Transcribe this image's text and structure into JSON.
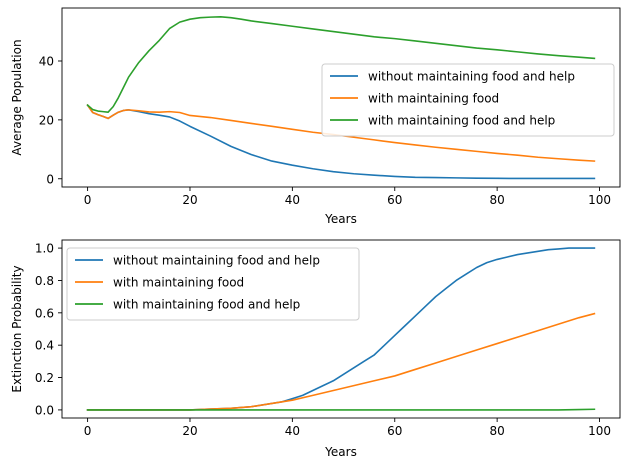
{
  "chart_data": [
    {
      "type": "line",
      "xlabel": "Years",
      "ylabel": "Average Population",
      "xlim": [
        -5,
        104
      ],
      "ylim": [
        -2.8,
        58
      ],
      "xticks": [
        0,
        20,
        40,
        60,
        80,
        100
      ],
      "yticks": [
        0,
        20,
        40
      ],
      "legend_position": "center-right",
      "series": [
        {
          "name": "without maintaining food and help",
          "color": "#1f77b4",
          "x": [
            0,
            1,
            2,
            3,
            4,
            5,
            6,
            7,
            8,
            10,
            12,
            14,
            16,
            18,
            20,
            24,
            28,
            32,
            36,
            40,
            44,
            48,
            52,
            56,
            60,
            64,
            68,
            72,
            76,
            80,
            84,
            88,
            92,
            96,
            99
          ],
          "y": [
            25,
            22.5,
            21.8,
            21.2,
            20.5,
            21.6,
            22.6,
            23.2,
            23.4,
            22.8,
            22.1,
            21.6,
            21.0,
            19.6,
            17.8,
            14.5,
            11.0,
            8.2,
            6.0,
            4.6,
            3.4,
            2.4,
            1.7,
            1.2,
            0.8,
            0.5,
            0.4,
            0.3,
            0.2,
            0.15,
            0.1,
            0.1,
            0.1,
            0.1,
            0.1
          ]
        },
        {
          "name": "with maintaining food",
          "color": "#ff7f0e",
          "x": [
            0,
            1,
            2,
            3,
            4,
            5,
            6,
            7,
            8,
            10,
            12,
            14,
            16,
            18,
            20,
            24,
            28,
            32,
            36,
            40,
            44,
            48,
            52,
            56,
            60,
            64,
            68,
            72,
            76,
            80,
            84,
            88,
            92,
            96,
            99
          ],
          "y": [
            25,
            22.5,
            21.8,
            21.2,
            20.5,
            21.6,
            22.6,
            23.2,
            23.4,
            23.1,
            22.7,
            22.6,
            22.8,
            22.5,
            21.5,
            20.8,
            19.8,
            18.8,
            17.8,
            16.8,
            15.8,
            15.0,
            14.1,
            13.2,
            12.3,
            11.5,
            10.7,
            10.0,
            9.3,
            8.6,
            8.0,
            7.3,
            6.8,
            6.3,
            6.0
          ]
        },
        {
          "name": "with maintaining food and help",
          "color": "#2ca02c",
          "x": [
            0,
            1,
            2,
            3,
            4,
            5,
            6,
            7,
            8,
            10,
            12,
            14,
            16,
            18,
            20,
            22,
            24,
            26,
            28,
            30,
            32,
            36,
            40,
            44,
            48,
            52,
            56,
            60,
            64,
            68,
            72,
            76,
            80,
            84,
            88,
            92,
            96,
            99
          ],
          "y": [
            25,
            23.5,
            23.0,
            22.8,
            22.6,
            24.5,
            27.5,
            31.0,
            34.5,
            39.5,
            43.5,
            47.0,
            51.0,
            53.2,
            54.2,
            54.7,
            54.9,
            55.0,
            54.7,
            54.2,
            53.6,
            52.7,
            51.8,
            50.9,
            50.0,
            49.1,
            48.2,
            47.6,
            46.8,
            46.0,
            45.2,
            44.4,
            43.8,
            43.1,
            42.4,
            41.8,
            41.3,
            40.9
          ]
        }
      ]
    },
    {
      "type": "line",
      "xlabel": "Years",
      "ylabel": "Extinction Probability",
      "xlim": [
        -5,
        104
      ],
      "ylim": [
        -0.05,
        1.05
      ],
      "xticks": [
        0,
        20,
        40,
        60,
        80,
        100
      ],
      "yticks": [
        0.0,
        0.2,
        0.4,
        0.6,
        0.8,
        1.0
      ],
      "legend_position": "top-left",
      "series": [
        {
          "name": "without maintaining food and help",
          "color": "#1f77b4",
          "x": [
            0,
            10,
            20,
            24,
            28,
            32,
            34,
            36,
            38,
            40,
            42,
            44,
            46,
            48,
            50,
            52,
            54,
            56,
            58,
            60,
            62,
            64,
            66,
            68,
            70,
            72,
            74,
            76,
            78,
            80,
            82,
            84,
            86,
            88,
            90,
            92,
            94,
            96,
            99
          ],
          "y": [
            0,
            0,
            0.0,
            0.005,
            0.01,
            0.02,
            0.03,
            0.04,
            0.05,
            0.07,
            0.09,
            0.12,
            0.15,
            0.18,
            0.22,
            0.26,
            0.3,
            0.34,
            0.4,
            0.46,
            0.52,
            0.58,
            0.64,
            0.7,
            0.75,
            0.8,
            0.84,
            0.88,
            0.91,
            0.93,
            0.945,
            0.96,
            0.97,
            0.98,
            0.99,
            0.995,
            1.0,
            1.0,
            1.0
          ]
        },
        {
          "name": "with maintaining food",
          "color": "#ff7f0e",
          "x": [
            0,
            10,
            20,
            24,
            28,
            32,
            36,
            40,
            44,
            48,
            52,
            56,
            60,
            64,
            68,
            72,
            76,
            80,
            84,
            88,
            92,
            96,
            99
          ],
          "y": [
            0,
            0,
            0.0,
            0.005,
            0.01,
            0.02,
            0.04,
            0.06,
            0.09,
            0.12,
            0.15,
            0.18,
            0.21,
            0.25,
            0.29,
            0.33,
            0.37,
            0.41,
            0.45,
            0.49,
            0.53,
            0.57,
            0.595
          ]
        },
        {
          "name": "with maintaining food and help",
          "color": "#2ca02c",
          "x": [
            0,
            20,
            40,
            60,
            80,
            92,
            96,
            99
          ],
          "y": [
            0,
            0,
            0,
            0,
            0,
            0,
            0.002,
            0.004
          ]
        }
      ]
    }
  ]
}
